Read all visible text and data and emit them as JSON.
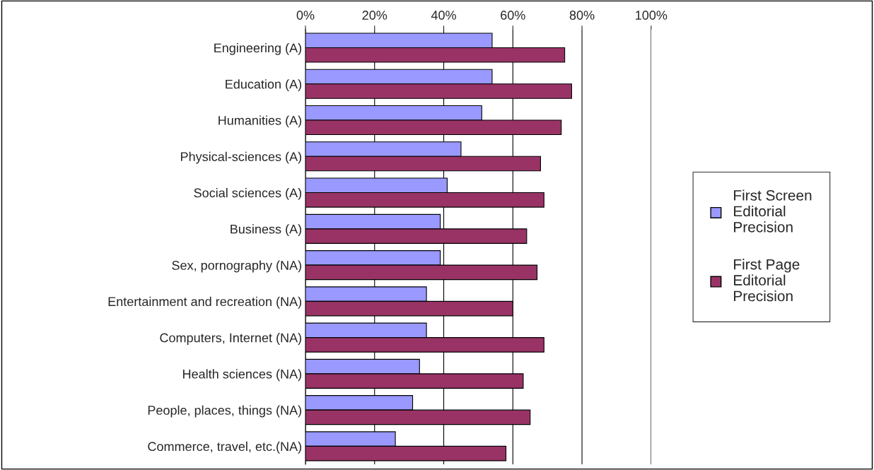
{
  "chart_data": {
    "type": "bar",
    "orientation": "horizontal",
    "categories": [
      "Engineering (A)",
      "Education (A)",
      "Humanities (A)",
      "Physical-sciences (A)",
      "Social sciences (A)",
      "Business (A)",
      "Sex, pornography (NA)",
      "Entertainment and recreation (NA)",
      "Computers, Internet (NA)",
      "Health sciences (NA)",
      "People, places, things (NA)",
      "Commerce, travel, etc.(NA)"
    ],
    "series": [
      {
        "name": "First Screen\nEditorial\nPrecision",
        "color": "#9999ff",
        "values": [
          54,
          54,
          51,
          45,
          41,
          39,
          39,
          35,
          35,
          33,
          31,
          26
        ]
      },
      {
        "name": "First Page\nEditorial\nPrecision",
        "color": "#993366",
        "values": [
          75,
          77,
          74,
          68,
          69,
          64,
          67,
          60,
          69,
          63,
          65,
          58
        ]
      }
    ],
    "xlim": [
      0,
      100
    ],
    "xticks": [
      {
        "value": 0,
        "label": "0%"
      },
      {
        "value": 20,
        "label": "20%"
      },
      {
        "value": 40,
        "label": "40%"
      },
      {
        "value": 60,
        "label": "60%"
      },
      {
        "value": 80,
        "label": "80%"
      },
      {
        "value": 100,
        "label": "100%"
      }
    ],
    "grid": "x",
    "legend": "right"
  }
}
